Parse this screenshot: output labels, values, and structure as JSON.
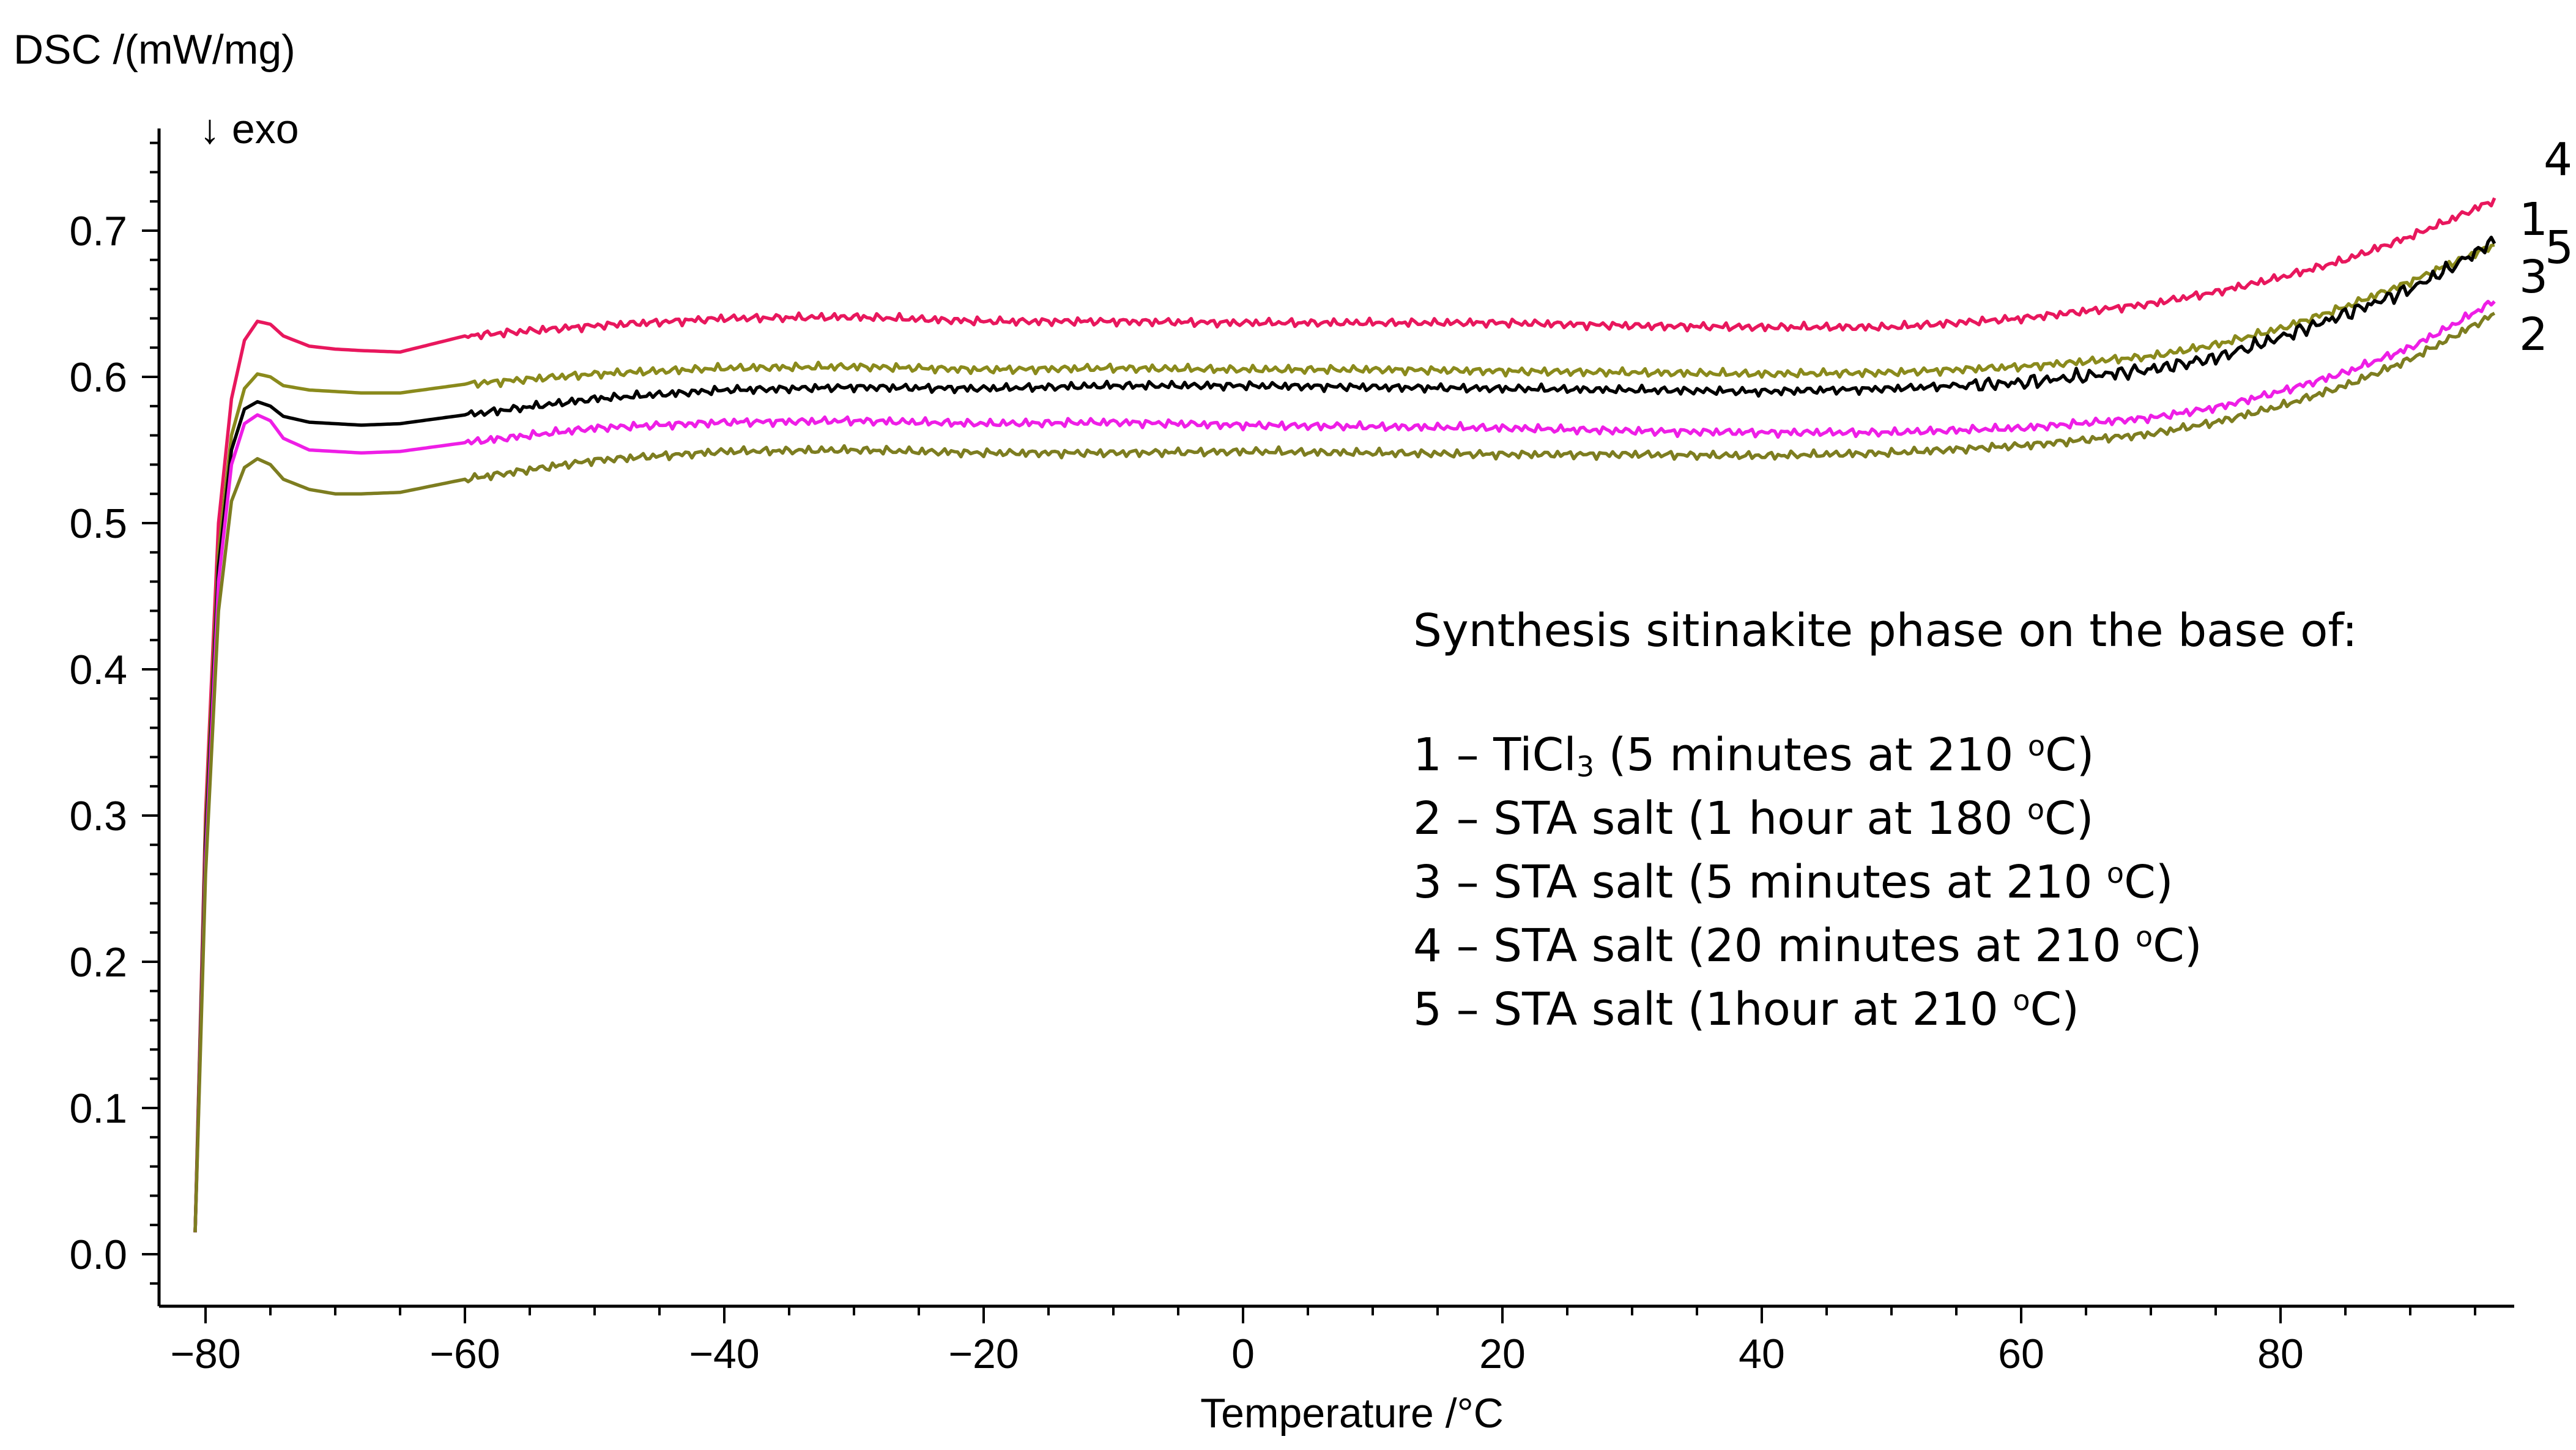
{
  "chart_data": {
    "type": "line",
    "ylabel": "DSC /(mW/mg)",
    "xlabel": "Temperature /°C",
    "direction_note": "↓ exo",
    "xlim": [
      -82,
      99
    ],
    "ylim": [
      -0.03,
      0.77
    ],
    "x_ticks": [
      -80,
      -60,
      -40,
      -20,
      0,
      20,
      40,
      60,
      80
    ],
    "x_tick_labels": [
      "−80",
      "−60",
      "−40",
      "−20",
      "0",
      "20",
      "40",
      "60",
      "80"
    ],
    "y_ticks": [
      0.0,
      0.1,
      0.2,
      0.3,
      0.4,
      0.5,
      0.6,
      0.7
    ],
    "y_tick_labels": [
      "0.0",
      "0.1",
      "0.2",
      "0.3",
      "0.4",
      "0.5",
      "0.6",
      "0.7"
    ],
    "grid": false,
    "legend": {
      "title": "Synthesis sitinakite phase on the base of:",
      "placement": "center-right",
      "entries": [
        {
          "num": "1",
          "sep": "–",
          "text": "TiCl",
          "sub": "3",
          "cond": "(5 minutes at 210 ",
          "sup": "o",
          "unit": "C)"
        },
        {
          "num": "2",
          "sep": "–",
          "text": "STA salt",
          "sub": "",
          "cond": "(1 hour at 180 ",
          "sup": "o",
          "unit": "C)"
        },
        {
          "num": "3",
          "sep": "–",
          "text": "STA salt",
          "sub": "",
          "cond": "(5 minutes at 210 ",
          "sup": "o",
          "unit": "C)"
        },
        {
          "num": "4",
          "sep": "–",
          "text": "STA salt",
          "sub": "",
          "cond": "(20 minutes at 210 ",
          "sup": "o",
          "unit": "C)"
        },
        {
          "num": "5",
          "sep": "–",
          "text": "STA salt",
          "sub": "",
          "cond": "(1hour at 210 ",
          "sup": "o",
          "unit": "C)"
        }
      ]
    },
    "series": [
      {
        "name": "4",
        "label": "4",
        "color": "#e8175d",
        "label_color": "#e8141e",
        "x": [
          -80.8,
          -80,
          -79,
          -78,
          -77,
          -76,
          -75,
          -74,
          -72,
          -70,
          -68,
          -65,
          -60,
          -50,
          -40,
          -30,
          -20,
          -10,
          0,
          10,
          20,
          30,
          40,
          50,
          60,
          70,
          75,
          80,
          85,
          90,
          93,
          96.5
        ],
        "y": [
          0.015,
          0.3,
          0.5,
          0.585,
          0.625,
          0.638,
          0.636,
          0.628,
          0.621,
          0.619,
          0.618,
          0.617,
          0.628,
          0.635,
          0.64,
          0.641,
          0.638,
          0.638,
          0.637,
          0.637,
          0.637,
          0.635,
          0.634,
          0.634,
          0.64,
          0.65,
          0.658,
          0.668,
          0.68,
          0.696,
          0.707,
          0.721
        ]
      },
      {
        "name": "5",
        "label": "5",
        "color": "#8a8a1c",
        "label_color": "#1f4e3d",
        "x": [
          -80.8,
          -80,
          -79,
          -78,
          -77,
          -76,
          -75,
          -74,
          -72,
          -70,
          -68,
          -65,
          -60,
          -50,
          -40,
          -30,
          -20,
          -10,
          0,
          10,
          20,
          30,
          40,
          50,
          60,
          70,
          75,
          80,
          85,
          90,
          93,
          96.5
        ],
        "y": [
          0.015,
          0.29,
          0.48,
          0.56,
          0.592,
          0.602,
          0.6,
          0.594,
          0.591,
          0.59,
          0.589,
          0.589,
          0.595,
          0.602,
          0.606,
          0.607,
          0.605,
          0.606,
          0.605,
          0.605,
          0.604,
          0.603,
          0.602,
          0.603,
          0.607,
          0.614,
          0.622,
          0.633,
          0.648,
          0.665,
          0.677,
          0.69
        ]
      },
      {
        "name": "1",
        "label": "1",
        "color": "#000000",
        "label_color": "#000000",
        "x": [
          -80.8,
          -80,
          -79,
          -78,
          -77,
          -76,
          -75,
          -74,
          -72,
          -70,
          -68,
          -65,
          -60,
          -50,
          -40,
          -30,
          -20,
          -10,
          0,
          10,
          20,
          30,
          40,
          50,
          60,
          70,
          75,
          80,
          85,
          90,
          93,
          96.5
        ],
        "y": [
          0.015,
          0.28,
          0.47,
          0.55,
          0.578,
          0.583,
          0.58,
          0.573,
          0.569,
          0.568,
          0.567,
          0.568,
          0.574,
          0.585,
          0.591,
          0.593,
          0.592,
          0.594,
          0.594,
          0.593,
          0.592,
          0.591,
          0.59,
          0.592,
          0.596,
          0.605,
          0.613,
          0.627,
          0.643,
          0.66,
          0.674,
          0.693
        ]
      },
      {
        "name": "3",
        "label": "3",
        "color": "#ee1ee6",
        "label_color": "#ee1ee6",
        "x": [
          -80.8,
          -80,
          -79,
          -78,
          -77,
          -76,
          -75,
          -74,
          -72,
          -70,
          -68,
          -65,
          -60,
          -50,
          -40,
          -30,
          -20,
          -10,
          0,
          10,
          20,
          30,
          40,
          50,
          60,
          70,
          75,
          80,
          85,
          90,
          93,
          96.5
        ],
        "y": [
          0.015,
          0.27,
          0.46,
          0.54,
          0.568,
          0.574,
          0.57,
          0.558,
          0.55,
          0.549,
          0.548,
          0.549,
          0.555,
          0.565,
          0.569,
          0.57,
          0.568,
          0.569,
          0.567,
          0.566,
          0.565,
          0.563,
          0.562,
          0.562,
          0.565,
          0.572,
          0.579,
          0.59,
          0.603,
          0.62,
          0.634,
          0.652
        ]
      },
      {
        "name": "2",
        "label": "2",
        "color": "#7d7d20",
        "label_color": "#9c8c2c",
        "x": [
          -80.8,
          -80,
          -79,
          -78,
          -77,
          -76,
          -75,
          -74,
          -72,
          -70,
          -68,
          -65,
          -60,
          -50,
          -40,
          -30,
          -20,
          -10,
          0,
          10,
          20,
          30,
          40,
          50,
          60,
          70,
          75,
          80,
          85,
          90,
          93,
          96.5
        ],
        "y": [
          0.015,
          0.26,
          0.44,
          0.515,
          0.538,
          0.544,
          0.54,
          0.53,
          0.523,
          0.52,
          0.52,
          0.521,
          0.53,
          0.543,
          0.549,
          0.55,
          0.548,
          0.548,
          0.549,
          0.548,
          0.547,
          0.547,
          0.546,
          0.548,
          0.553,
          0.561,
          0.569,
          0.58,
          0.594,
          0.612,
          0.626,
          0.643
        ]
      }
    ]
  }
}
